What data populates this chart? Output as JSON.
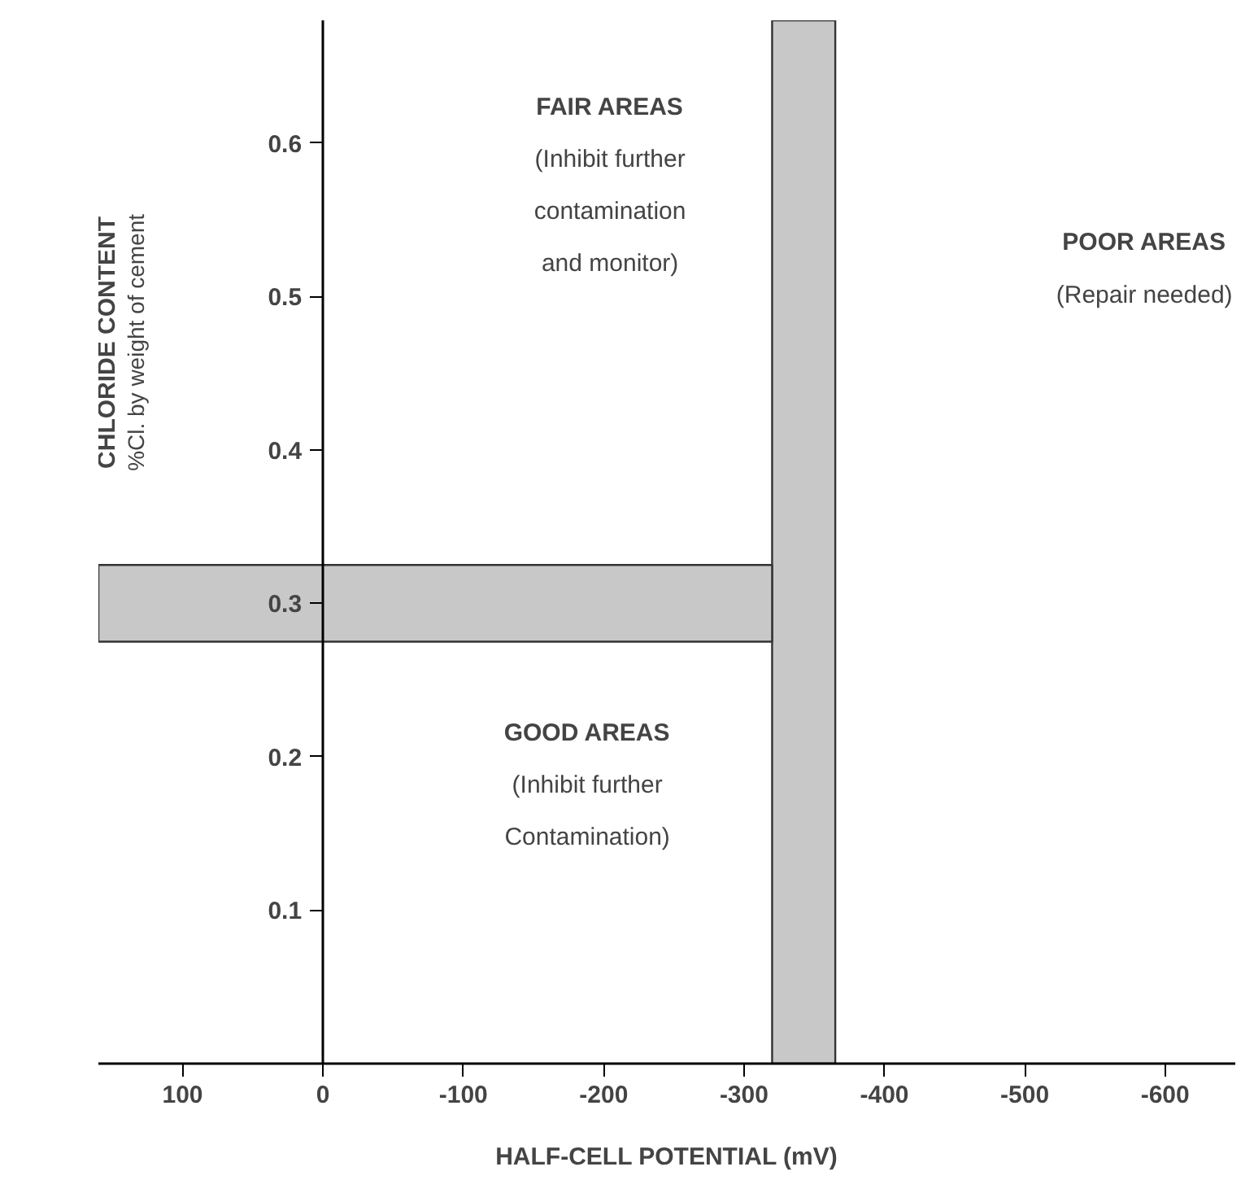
{
  "chart_data": {
    "type": "line",
    "xlabel": "HALF-CELL POTENTIAL (mV)",
    "ylabel": "CHLORIDE CONTENT\n%Cl. by weight of cement",
    "xlim": [
      160,
      -650
    ],
    "ylim": [
      0,
      0.68
    ],
    "xticks": [
      100,
      0,
      -100,
      -200,
      -300,
      -400,
      -500,
      -600
    ],
    "yticks": [
      0.1,
      0.2,
      0.3,
      0.4,
      0.5,
      0.6
    ],
    "bands": [
      {
        "axis": "x",
        "from": -320,
        "to": -365,
        "label": null,
        "color": "#c8c8c8"
      },
      {
        "axis": "y",
        "from": 0.275,
        "to": 0.325,
        "label": null,
        "color": "#c8c8c8"
      }
    ],
    "annotations": [
      "FAIR AREAS\n(Inhibit further\ncontamination\nand monitor)",
      "POOR AREAS\n(Repair needed)",
      "GOOD AREAS\n(Inhibit further\nContamination)"
    ],
    "grid": false
  }
}
